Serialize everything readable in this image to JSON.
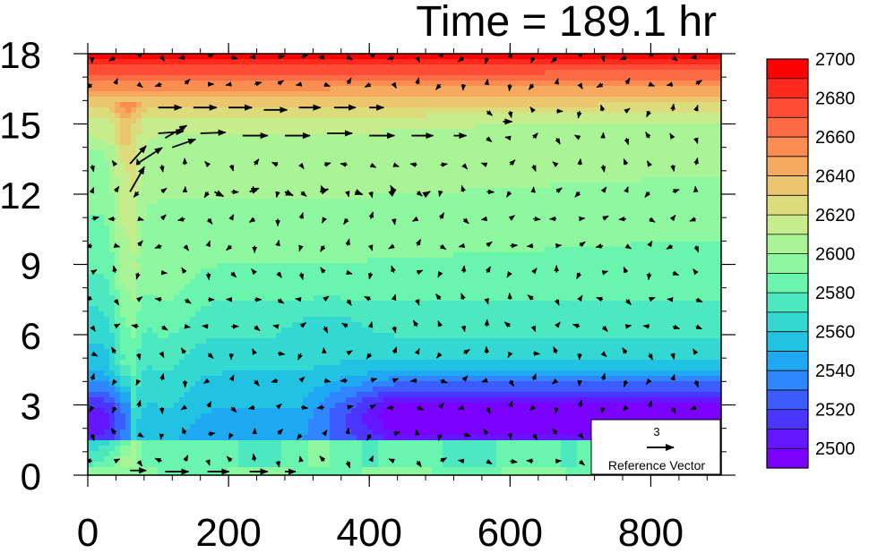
{
  "chart_data": {
    "type": "heatmap",
    "title": "Time = 189.1 hr",
    "xlabel": "",
    "ylabel": "",
    "xlim": [
      0,
      900
    ],
    "ylim": [
      0,
      18
    ],
    "x_ticks": [
      {
        "value": 0,
        "label": "0"
      },
      {
        "value": 200,
        "label": "200"
      },
      {
        "value": 400,
        "label": "400"
      },
      {
        "value": 600,
        "label": "600"
      },
      {
        "value": 800,
        "label": "800"
      }
    ],
    "y_ticks": [
      {
        "value": 0,
        "label": "0"
      },
      {
        "value": 3,
        "label": "3"
      },
      {
        "value": 6,
        "label": "6"
      },
      {
        "value": 9,
        "label": "9"
      },
      {
        "value": 12,
        "label": "12"
      },
      {
        "value": 15,
        "label": "15"
      },
      {
        "value": 18,
        "label": "18"
      }
    ],
    "colorbar": {
      "levels": [
        2500,
        2510,
        2520,
        2530,
        2540,
        2550,
        2560,
        2570,
        2580,
        2590,
        2600,
        2610,
        2620,
        2630,
        2640,
        2650,
        2660,
        2670,
        2680,
        2690,
        2700
      ],
      "labels": [
        "2500",
        "2520",
        "2540",
        "2560",
        "2580",
        "2600",
        "2620",
        "2640",
        "2660",
        "2680",
        "2700"
      ],
      "colors": [
        "#7a00ff",
        "#6316ff",
        "#4a36ff",
        "#3d5cff",
        "#2f86ff",
        "#1ea9f2",
        "#22c3e2",
        "#33d8d2",
        "#4de8bf",
        "#6af5ae",
        "#8ef8a0",
        "#a8f496",
        "#c6ec8c",
        "#dcdc7c",
        "#ecc66e",
        "#f6aa60",
        "#fb8d52",
        "#fd6b44",
        "#ff4c34",
        "#ff2a1e",
        "#ff0000"
      ]
    },
    "reference_vector": {
      "value": "3",
      "label": "Reference Vector"
    },
    "vectors": [
      {
        "x": 100,
        "y": 15.7,
        "u": 2.6,
        "v": 0
      },
      {
        "x": 150,
        "y": 15.7,
        "u": 2.6,
        "v": 0
      },
      {
        "x": 200,
        "y": 15.7,
        "u": 2.6,
        "v": 0
      },
      {
        "x": 250,
        "y": 15.6,
        "u": 2.6,
        "v": 0
      },
      {
        "x": 300,
        "y": 15.7,
        "u": 2.4,
        "v": 0
      },
      {
        "x": 350,
        "y": 15.7,
        "u": 2.4,
        "v": 0
      },
      {
        "x": 400,
        "y": 15.7,
        "u": 1.6,
        "v": 0
      },
      {
        "x": 100,
        "y": 14.6,
        "u": 2.8,
        "v": 0.2
      },
      {
        "x": 160,
        "y": 14.6,
        "u": 2.8,
        "v": 0.1
      },
      {
        "x": 220,
        "y": 14.5,
        "u": 2.8,
        "v": 0
      },
      {
        "x": 280,
        "y": 14.5,
        "u": 2.8,
        "v": 0
      },
      {
        "x": 340,
        "y": 14.6,
        "u": 2.8,
        "v": 0
      },
      {
        "x": 400,
        "y": 14.5,
        "u": 2.8,
        "v": 0
      },
      {
        "x": 460,
        "y": 14.5,
        "u": 2.4,
        "v": 0
      },
      {
        "x": 520,
        "y": 14.5,
        "u": 1.4,
        "v": 0
      },
      {
        "x": 590,
        "y": 15.1,
        "u": 1.0,
        "v": 0
      },
      {
        "x": 60,
        "y": 13.3,
        "u": 1.8,
        "v": 2.0
      },
      {
        "x": 60,
        "y": 12.1,
        "u": 1.6,
        "v": 2.8
      },
      {
        "x": 70,
        "y": 13.3,
        "u": 2.8,
        "v": 1.8
      },
      {
        "x": 60,
        "y": 0.2,
        "u": 1.8,
        "v": 0
      },
      {
        "x": 110,
        "y": 0.15,
        "u": 2.6,
        "v": 0
      },
      {
        "x": 170,
        "y": 0.15,
        "u": 2.4,
        "v": 0
      },
      {
        "x": 230,
        "y": 0.15,
        "u": 2.0,
        "v": 0
      },
      {
        "x": 280,
        "y": 0.15,
        "u": 1.2,
        "v": 0
      },
      {
        "x": 180,
        "y": 12.1,
        "u": 1.0,
        "v": -0.5
      },
      {
        "x": 230,
        "y": 12.1,
        "u": 1.0,
        "v": 0.4
      },
      {
        "x": 280,
        "y": 12.1,
        "u": 0.9,
        "v": -0.4
      },
      {
        "x": 330,
        "y": 12.1,
        "u": 0.9,
        "v": 0.3
      },
      {
        "x": 380,
        "y": 12.1,
        "u": 0.8,
        "v": -0.3
      },
      {
        "x": 430,
        "y": 12.0,
        "u": 0.6,
        "v": 0.5
      },
      {
        "x": 480,
        "y": 12.0,
        "u": 0.5,
        "v": 0.3
      },
      {
        "x": 120,
        "y": 14.0,
        "u": 2.6,
        "v": 0.9
      },
      {
        "x": 110,
        "y": 14.4,
        "u": 2.4,
        "v": 1.4
      }
    ]
  }
}
